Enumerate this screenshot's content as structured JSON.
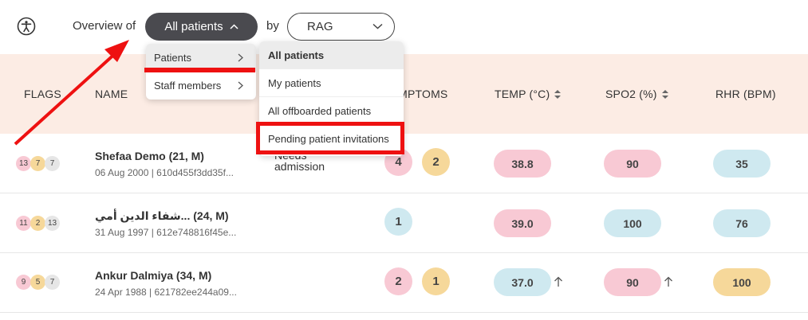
{
  "topbar": {
    "accessibility_icon": "accessibility-icon",
    "overview_label": "Overview of",
    "patients_dropdown_label": "All patients",
    "by_label": "by",
    "group_dropdown_label": "RAG"
  },
  "columns": {
    "flags": "FLAGS",
    "name": "NAME",
    "symptoms": "SYMPTOMS",
    "temp": "TEMP (°C)",
    "spo2": "SPO2 (%)",
    "rhr": "RHR (BPM)"
  },
  "menu": {
    "items": [
      "Patients",
      "Staff members"
    ],
    "submenu": [
      "All patients",
      "My patients",
      "All offboarded patients",
      "Pending patient invitations"
    ]
  },
  "rows": [
    {
      "flags": [
        "13",
        "7",
        "7"
      ],
      "name": "Shefaa Demo (21, M)",
      "sub": "06 Aug 2000 | 610d455f3dd35f...",
      "status": "Needs admission",
      "symptoms": [
        "4",
        "2"
      ],
      "temp": "38.8",
      "spo2": "90",
      "rhr": "35"
    },
    {
      "flags": [
        "11",
        "2",
        "13"
      ],
      "name": "شفاء الدين أمي... (24, M)",
      "sub": "31 Aug 1997 | 612e748816f45e...",
      "symptoms": [
        "1"
      ],
      "temp": "39.0",
      "spo2": "100",
      "rhr": "76"
    },
    {
      "flags": [
        "9",
        "5",
        "7"
      ],
      "name": "Ankur Dalmiya (34, M)",
      "sub": "24 Apr 1988 | 621782ee244a09...",
      "symptoms": [
        "2",
        "1"
      ],
      "temp": "37.0",
      "spo2": "90",
      "rhr": "100"
    }
  ],
  "colors": {
    "header_bg": "#fcece4",
    "pink": "#f8c9d4",
    "yellow": "#f6d89a",
    "blue": "#cfe9f0",
    "annotation_red": "#ee1111"
  }
}
